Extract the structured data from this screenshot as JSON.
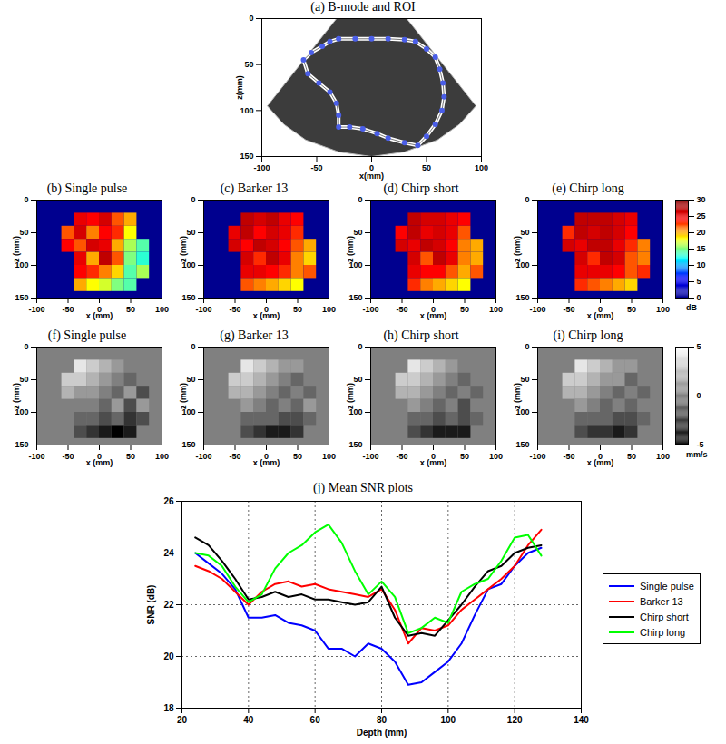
{
  "chart_data": [
    {
      "type": "image",
      "title": "(a) B-mode and ROI",
      "xlabel": "x(mm)",
      "ylabel": "z(mm)",
      "xlim": [
        -100,
        100
      ],
      "xticks": [
        -100,
        -50,
        0,
        50,
        100
      ],
      "ylim": [
        0,
        150
      ],
      "yticks": [
        0,
        50,
        100,
        150
      ],
      "image_region": [
        [
          -32,
          0
        ],
        [
          32,
          0
        ],
        [
          95,
          95
        ],
        [
          80,
          115
        ],
        [
          60,
          132
        ],
        [
          30,
          145
        ],
        [
          0,
          150
        ],
        [
          -30,
          145
        ],
        [
          -60,
          132
        ],
        [
          -80,
          115
        ],
        [
          -95,
          95
        ]
      ],
      "roi": {
        "color": "#4a5ee8",
        "marker": "circle",
        "points": [
          [
            -30,
            22
          ],
          [
            -15,
            22
          ],
          [
            0,
            22
          ],
          [
            15,
            22
          ],
          [
            30,
            23
          ],
          [
            40,
            25
          ],
          [
            50,
            33
          ],
          [
            58,
            42
          ],
          [
            62,
            55
          ],
          [
            65,
            70
          ],
          [
            66,
            85
          ],
          [
            64,
            100
          ],
          [
            58,
            115
          ],
          [
            50,
            128
          ],
          [
            42,
            138
          ],
          [
            30,
            135
          ],
          [
            15,
            130
          ],
          [
            5,
            125
          ],
          [
            -8,
            120
          ],
          [
            -20,
            118
          ],
          [
            -30,
            118
          ],
          [
            -30,
            105
          ],
          [
            -32,
            92
          ],
          [
            -38,
            80
          ],
          [
            -48,
            70
          ],
          [
            -58,
            60
          ],
          [
            -62,
            45
          ],
          [
            -55,
            37
          ],
          [
            -45,
            30
          ],
          [
            -38,
            25
          ]
        ]
      }
    },
    {
      "type": "heatmap",
      "title": "(b) Single pulse",
      "xlabel": "x (mm)",
      "ylabel": "z (mm)",
      "xlim": [
        -100,
        100
      ],
      "xticks": [
        -100,
        -50,
        0,
        50,
        100
      ],
      "ylim": [
        0,
        150
      ],
      "yticks": [
        0,
        50,
        100,
        150
      ],
      "color_range": [
        0,
        30
      ],
      "color_stops": [
        "#00008f",
        "#0000ff",
        "#00ffff",
        "#ffff00",
        "#ff0000",
        "#800000"
      ],
      "mask_value": 0,
      "x_edges": [
        -60,
        -40,
        -20,
        0,
        20,
        40,
        60,
        80
      ],
      "z_edges": [
        20,
        40,
        60,
        80,
        100,
        120,
        140
      ],
      "values": [
        [
          null,
          25,
          24,
          26,
          22,
          20,
          null
        ],
        [
          22,
          26,
          21,
          24,
          23,
          18,
          null
        ],
        [
          24,
          22,
          26,
          25,
          20,
          16,
          14
        ],
        [
          null,
          25,
          20,
          27,
          22,
          15,
          13
        ],
        [
          null,
          24,
          23,
          21,
          19,
          14,
          16
        ],
        [
          null,
          20,
          18,
          17,
          15,
          14,
          null
        ]
      ]
    },
    {
      "type": "heatmap",
      "title": "(c) Barker 13",
      "xlabel": "x (mm)",
      "ylabel": "z (mm)",
      "xlim": [
        -100,
        100
      ],
      "xticks": [
        -100,
        -50,
        0,
        50,
        100
      ],
      "ylim": [
        0,
        150
      ],
      "yticks": [
        0,
        50,
        100,
        150
      ],
      "color_range": [
        0,
        30
      ],
      "color_stops": [
        "#00008f",
        "#0000ff",
        "#00ffff",
        "#ffff00",
        "#ff0000",
        "#800000"
      ],
      "mask_value": 0,
      "x_edges": [
        -60,
        -40,
        -20,
        0,
        20,
        40,
        60,
        80
      ],
      "z_edges": [
        20,
        40,
        60,
        80,
        100,
        120,
        140
      ],
      "values": [
        [
          null,
          27,
          26,
          27,
          25,
          24,
          null
        ],
        [
          25,
          27,
          24,
          26,
          25,
          23,
          null
        ],
        [
          26,
          24,
          27,
          26,
          24,
          22,
          20
        ],
        [
          null,
          26,
          23,
          27,
          25,
          21,
          19
        ],
        [
          null,
          25,
          25,
          24,
          23,
          21,
          22
        ],
        [
          null,
          22,
          21,
          20,
          19,
          18,
          null
        ]
      ]
    },
    {
      "type": "heatmap",
      "title": "(d) Chirp short",
      "xlabel": "x (mm)",
      "ylabel": "z (mm)",
      "xlim": [
        -100,
        100
      ],
      "xticks": [
        -100,
        -50,
        0,
        50,
        100
      ],
      "ylim": [
        0,
        150
      ],
      "yticks": [
        0,
        50,
        100,
        150
      ],
      "color_range": [
        0,
        30
      ],
      "color_stops": [
        "#00008f",
        "#0000ff",
        "#00ffff",
        "#ffff00",
        "#ff0000",
        "#800000"
      ],
      "mask_value": 0,
      "x_edges": [
        -60,
        -40,
        -20,
        0,
        20,
        40,
        60,
        80
      ],
      "z_edges": [
        20,
        40,
        60,
        80,
        100,
        120,
        140
      ],
      "values": [
        [
          null,
          27,
          26,
          26,
          25,
          24,
          null
        ],
        [
          24,
          27,
          25,
          26,
          25,
          22,
          null
        ],
        [
          26,
          25,
          27,
          26,
          24,
          21,
          20
        ],
        [
          null,
          26,
          22,
          27,
          25,
          21,
          20
        ],
        [
          null,
          25,
          24,
          24,
          22,
          20,
          22
        ],
        [
          null,
          23,
          21,
          20,
          19,
          18,
          null
        ]
      ]
    },
    {
      "type": "heatmap",
      "title": "(e) Chirp long",
      "xlabel": "x (mm)",
      "ylabel": "z (mm)",
      "xlim": [
        -100,
        100
      ],
      "xticks": [
        -100,
        -50,
        0,
        50,
        100
      ],
      "ylim": [
        0,
        150
      ],
      "yticks": [
        0,
        50,
        100,
        150
      ],
      "color_range": [
        0,
        30
      ],
      "color_stops": [
        "#00008f",
        "#0000ff",
        "#00ffff",
        "#ffff00",
        "#ff0000",
        "#800000"
      ],
      "mask_value": 0,
      "colorbar": {
        "ticks": [
          0,
          5,
          10,
          15,
          20,
          25,
          30
        ],
        "label": "dB"
      },
      "x_edges": [
        -60,
        -40,
        -20,
        0,
        20,
        40,
        60,
        80
      ],
      "z_edges": [
        20,
        40,
        60,
        80,
        100,
        120,
        140
      ],
      "values": [
        [
          null,
          27,
          27,
          27,
          26,
          25,
          null
        ],
        [
          23,
          27,
          26,
          27,
          26,
          24,
          null
        ],
        [
          26,
          25,
          27,
          27,
          25,
          23,
          21
        ],
        [
          null,
          26,
          23,
          27,
          26,
          22,
          21
        ],
        [
          null,
          25,
          25,
          25,
          24,
          22,
          23
        ],
        [
          null,
          23,
          22,
          21,
          20,
          19,
          null
        ]
      ]
    },
    {
      "type": "heatmap",
      "title": "(f) Single pulse",
      "xlabel": "x (mm)",
      "ylabel": "z (mm)",
      "xlim": [
        -100,
        100
      ],
      "xticks": [
        -100,
        -50,
        0,
        50,
        100
      ],
      "ylim": [
        0,
        150
      ],
      "yticks": [
        0,
        50,
        100,
        150
      ],
      "color_range": [
        -5,
        5
      ],
      "color_stops": [
        "#000000",
        "#ffffff"
      ],
      "mask_value": 0,
      "x_edges": [
        -60,
        -40,
        -20,
        0,
        20,
        40,
        60,
        80
      ],
      "z_edges": [
        20,
        40,
        60,
        80,
        100,
        120,
        140
      ],
      "values": [
        [
          null,
          4,
          3,
          2,
          1,
          0,
          null
        ],
        [
          3,
          3,
          2,
          1,
          0,
          -1,
          null
        ],
        [
          2,
          1,
          1,
          0,
          -1,
          1,
          -2
        ],
        [
          null,
          0,
          0,
          -1,
          1,
          -2,
          1
        ],
        [
          null,
          -1,
          -1,
          -2,
          -1,
          -3,
          -2
        ],
        [
          null,
          -2,
          -3,
          -4,
          -5,
          -4,
          null
        ]
      ]
    },
    {
      "type": "heatmap",
      "title": "(g) Barker 13",
      "xlabel": "x (mm)",
      "ylabel": "z (mm)",
      "xlim": [
        -100,
        100
      ],
      "xticks": [
        -100,
        -50,
        0,
        50,
        100
      ],
      "ylim": [
        0,
        150
      ],
      "yticks": [
        0,
        50,
        100,
        150
      ],
      "color_range": [
        -5,
        5
      ],
      "color_stops": [
        "#000000",
        "#ffffff"
      ],
      "mask_value": 0,
      "x_edges": [
        -60,
        -40,
        -20,
        0,
        20,
        40,
        60,
        80
      ],
      "z_edges": [
        20,
        40,
        60,
        80,
        100,
        120,
        140
      ],
      "values": [
        [
          null,
          4,
          3,
          2,
          1,
          1,
          null
        ],
        [
          3,
          3,
          2,
          1,
          0,
          -1,
          null
        ],
        [
          2,
          2,
          1,
          0,
          -1,
          0,
          -1
        ],
        [
          null,
          1,
          0,
          -1,
          0,
          -1,
          1
        ],
        [
          null,
          -1,
          -1,
          -1,
          -2,
          -2,
          -1
        ],
        [
          null,
          -2,
          -3,
          -4,
          -4,
          -3,
          null
        ]
      ]
    },
    {
      "type": "heatmap",
      "title": "(h) Chirp short",
      "xlabel": "x (mm)",
      "ylabel": "z (mm)",
      "xlim": [
        -100,
        100
      ],
      "xticks": [
        -100,
        -50,
        0,
        50,
        100
      ],
      "ylim": [
        0,
        150
      ],
      "yticks": [
        0,
        50,
        100,
        150
      ],
      "color_range": [
        -5,
        5
      ],
      "color_stops": [
        "#000000",
        "#ffffff"
      ],
      "mask_value": 0,
      "x_edges": [
        -60,
        -40,
        -20,
        0,
        20,
        40,
        60,
        80
      ],
      "z_edges": [
        20,
        40,
        60,
        80,
        100,
        120,
        140
      ],
      "values": [
        [
          null,
          4,
          3,
          2,
          1,
          0,
          null
        ],
        [
          3,
          3,
          2,
          1,
          0,
          -1,
          null
        ],
        [
          2,
          2,
          1,
          0,
          -1,
          0,
          -1
        ],
        [
          null,
          1,
          0,
          -1,
          0,
          -2,
          0
        ],
        [
          null,
          -1,
          -1,
          -2,
          -1,
          -2,
          -1
        ],
        [
          null,
          -2,
          -3,
          -4,
          -4,
          -4,
          null
        ]
      ]
    },
    {
      "type": "heatmap",
      "title": "(i) Chirp long",
      "xlabel": "x (mm)",
      "ylabel": "z (mm)",
      "xlim": [
        -100,
        100
      ],
      "xticks": [
        -100,
        -50,
        0,
        50,
        100
      ],
      "ylim": [
        0,
        150
      ],
      "yticks": [
        0,
        50,
        100,
        150
      ],
      "color_range": [
        -5,
        5
      ],
      "color_stops": [
        "#000000",
        "#ffffff"
      ],
      "mask_value": 0,
      "colorbar": {
        "ticks": [
          -5,
          0,
          5
        ],
        "label": "mm/s"
      },
      "x_edges": [
        -60,
        -40,
        -20,
        0,
        20,
        40,
        60,
        80
      ],
      "z_edges": [
        20,
        40,
        60,
        80,
        100,
        120,
        140
      ],
      "values": [
        [
          null,
          4,
          3,
          2,
          1,
          1,
          null
        ],
        [
          3,
          3,
          2,
          1,
          1,
          -1,
          null
        ],
        [
          2,
          2,
          1,
          0,
          -1,
          0,
          -1
        ],
        [
          null,
          1,
          0,
          -1,
          0,
          -1,
          0
        ],
        [
          null,
          -1,
          -1,
          -1,
          -2,
          -2,
          -1
        ],
        [
          null,
          -2,
          -3,
          -3,
          -4,
          -3,
          null
        ]
      ]
    },
    {
      "type": "line",
      "title": "(j) Mean SNR plots",
      "xlabel": "Depth (mm)",
      "ylabel": "SNR (dB)",
      "xlim": [
        20,
        140
      ],
      "xticks": [
        20,
        40,
        60,
        80,
        100,
        120,
        140
      ],
      "ylim": [
        18,
        26
      ],
      "yticks": [
        18,
        20,
        22,
        24,
        26
      ],
      "grid": true,
      "legend": "right",
      "x": [
        24,
        28,
        32,
        36,
        40,
        44,
        48,
        52,
        56,
        60,
        64,
        68,
        72,
        76,
        80,
        84,
        88,
        92,
        96,
        100,
        104,
        108,
        112,
        116,
        120,
        124,
        128
      ],
      "series": [
        {
          "name": "Single pulse",
          "color": "#0000ff",
          "values": [
            24.0,
            23.6,
            23.2,
            22.6,
            21.5,
            21.5,
            21.6,
            21.3,
            21.2,
            21.0,
            20.3,
            20.3,
            20.0,
            20.5,
            20.3,
            19.8,
            18.9,
            19.0,
            19.4,
            19.8,
            20.5,
            21.6,
            22.6,
            22.8,
            23.5,
            24.0,
            24.2
          ]
        },
        {
          "name": "Barker 13",
          "color": "#ff0000",
          "values": [
            23.5,
            23.3,
            23.0,
            22.5,
            22.0,
            22.5,
            22.8,
            22.9,
            22.7,
            22.8,
            22.6,
            22.5,
            22.4,
            22.3,
            22.6,
            21.8,
            20.5,
            21.1,
            21.0,
            21.2,
            21.8,
            22.2,
            22.6,
            23.0,
            23.5,
            24.3,
            24.9
          ]
        },
        {
          "name": "Chirp short",
          "color": "#000000",
          "values": [
            24.6,
            24.3,
            23.7,
            23.0,
            22.2,
            22.3,
            22.5,
            22.3,
            22.4,
            22.2,
            22.2,
            22.1,
            22.0,
            22.1,
            22.7,
            21.5,
            20.8,
            20.9,
            20.8,
            21.4,
            22.0,
            22.7,
            23.3,
            23.5,
            24.0,
            24.2,
            24.3
          ]
        },
        {
          "name": "Chirp long",
          "color": "#00ff00",
          "values": [
            24.0,
            23.9,
            23.5,
            22.7,
            22.1,
            22.4,
            23.4,
            24.0,
            24.3,
            24.8,
            25.1,
            24.4,
            23.3,
            22.4,
            22.9,
            22.3,
            20.9,
            21.1,
            21.5,
            21.3,
            22.5,
            22.8,
            23.0,
            23.7,
            24.6,
            24.7,
            23.9
          ]
        }
      ]
    }
  ]
}
